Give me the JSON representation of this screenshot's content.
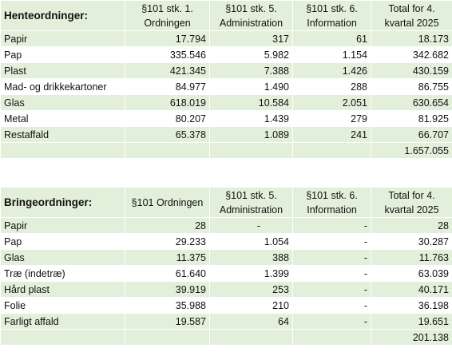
{
  "henteordninger": {
    "title": "Henteordninger:",
    "headers": [
      "§101 stk. 1. Ordningen",
      "§101 stk. 5. Administration",
      "§101 stk. 6. Information",
      "Total for 4. kvartal 2025"
    ],
    "rows": [
      {
        "label": "Papir",
        "values": [
          "17.794",
          "317",
          "61",
          "18.173"
        ]
      },
      {
        "label": "Pap",
        "values": [
          "335.546",
          "5.982",
          "1.154",
          "342.682"
        ]
      },
      {
        "label": "Plast",
        "values": [
          "421.345",
          "7.388",
          "1.426",
          "430.159"
        ]
      },
      {
        "label": "Mad- og drikkekartoner",
        "values": [
          "84.977",
          "1.490",
          "288",
          "86.755"
        ]
      },
      {
        "label": "Glas",
        "values": [
          "618.019",
          "10.584",
          "2.051",
          "630.654"
        ]
      },
      {
        "label": "Metal",
        "values": [
          "80.207",
          "1.439",
          "279",
          "81.925"
        ]
      },
      {
        "label": "Restaffald",
        "values": [
          "65.378",
          "1.089",
          "241",
          "66.707"
        ]
      }
    ],
    "total": "1.657.055"
  },
  "bringeordninger": {
    "title": "Bringeordninger:",
    "headers": [
      "§101 Ordningen",
      "§101 stk. 5. Administration",
      "§101 stk. 6. Information",
      "Total for 4. kvartal 2025"
    ],
    "rows": [
      {
        "label": "Papir",
        "values": [
          "28",
          "-",
          "-",
          "28"
        ]
      },
      {
        "label": "Pap",
        "values": [
          "29.233",
          "1.054",
          "-",
          "30.287"
        ]
      },
      {
        "label": "Glas",
        "values": [
          "11.375",
          "388",
          "-",
          "11.763"
        ]
      },
      {
        "label": "Træ (indetræ)",
        "values": [
          "61.640",
          "1.399",
          "-",
          "63.039"
        ]
      },
      {
        "label": "Hård plast",
        "values": [
          "39.919",
          "253",
          "-",
          "40.171"
        ]
      },
      {
        "label": "Folie",
        "values": [
          "35.988",
          "210",
          "-",
          "36.198"
        ]
      },
      {
        "label": "Farligt affald",
        "values": [
          "19.587",
          "64",
          "-",
          "19.651"
        ]
      }
    ],
    "total": "201.138"
  }
}
